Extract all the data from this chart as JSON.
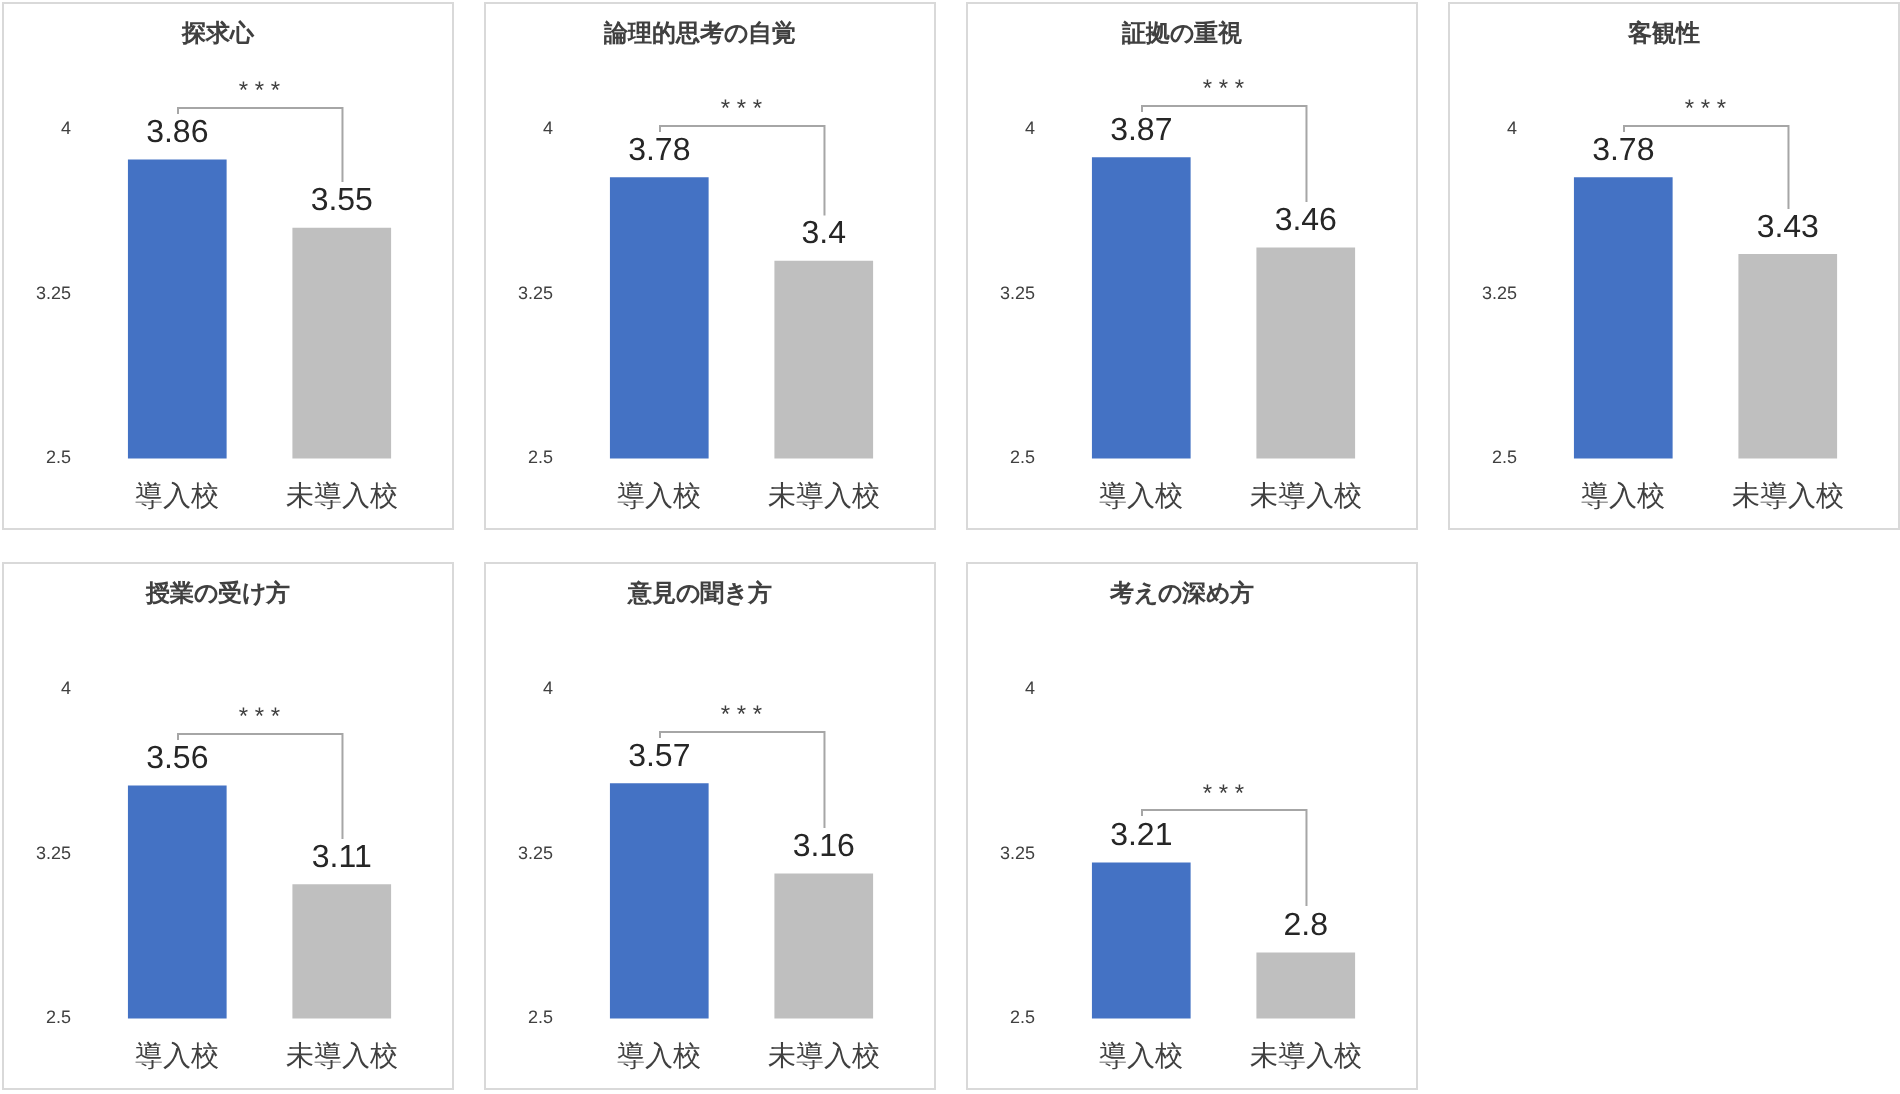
{
  "chart_data": [
    {
      "type": "bar",
      "title": "探求心",
      "categories": [
        "導入校",
        "未導入校"
      ],
      "values": [
        3.86,
        3.55
      ],
      "colors": [
        "#4472c4",
        "#bfbfbf"
      ],
      "ylim": [
        2.5,
        4
      ],
      "yticks": [
        2.5,
        3.25,
        4
      ],
      "data_labels": true,
      "annotations": [
        "* * *"
      ]
    },
    {
      "type": "bar",
      "title": "論理的思考の自覚",
      "categories": [
        "導入校",
        "未導入校"
      ],
      "values": [
        3.78,
        3.4
      ],
      "colors": [
        "#4472c4",
        "#bfbfbf"
      ],
      "ylim": [
        2.5,
        4
      ],
      "yticks": [
        2.5,
        3.25,
        4
      ],
      "data_labels": true,
      "annotations": [
        "* * *"
      ]
    },
    {
      "type": "bar",
      "title": "証拠の重視",
      "categories": [
        "導入校",
        "未導入校"
      ],
      "values": [
        3.87,
        3.46
      ],
      "colors": [
        "#4472c4",
        "#bfbfbf"
      ],
      "ylim": [
        2.5,
        4
      ],
      "yticks": [
        2.5,
        3.25,
        4
      ],
      "data_labels": true,
      "annotations": [
        "* * *"
      ]
    },
    {
      "type": "bar",
      "title": "客観性",
      "categories": [
        "導入校",
        "未導入校"
      ],
      "values": [
        3.78,
        3.43
      ],
      "colors": [
        "#4472c4",
        "#bfbfbf"
      ],
      "ylim": [
        2.5,
        4
      ],
      "yticks": [
        2.5,
        3.25,
        4
      ],
      "data_labels": true,
      "annotations": [
        "* * *"
      ]
    },
    {
      "type": "bar",
      "title": "授業の受け方",
      "categories": [
        "導入校",
        "未導入校"
      ],
      "values": [
        3.56,
        3.11
      ],
      "colors": [
        "#4472c4",
        "#bfbfbf"
      ],
      "ylim": [
        2.5,
        4
      ],
      "yticks": [
        2.5,
        3.25,
        4
      ],
      "data_labels": true,
      "annotations": [
        "* * *"
      ]
    },
    {
      "type": "bar",
      "title": "意見の聞き方",
      "categories": [
        "導入校",
        "未導入校"
      ],
      "values": [
        3.57,
        3.16
      ],
      "colors": [
        "#4472c4",
        "#bfbfbf"
      ],
      "ylim": [
        2.5,
        4
      ],
      "yticks": [
        2.5,
        3.25,
        4
      ],
      "data_labels": true,
      "annotations": [
        "* * *"
      ]
    },
    {
      "type": "bar",
      "title": "考えの深め方",
      "categories": [
        "導入校",
        "未導入校"
      ],
      "values": [
        3.21,
        2.8
      ],
      "colors": [
        "#4472c4",
        "#bfbfbf"
      ],
      "ylim": [
        2.5,
        4
      ],
      "yticks": [
        2.5,
        3.25,
        4
      ],
      "data_labels": true,
      "annotations": [
        "* * *"
      ]
    }
  ]
}
